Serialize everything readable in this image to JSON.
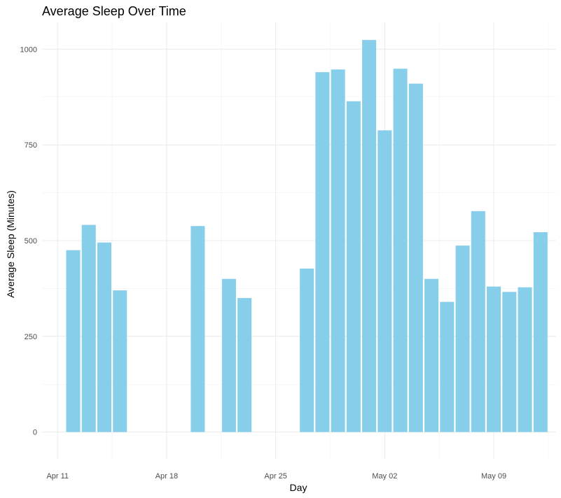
{
  "chart_data": {
    "type": "bar",
    "title": "Average Sleep Over Time",
    "xlabel": "Day",
    "ylabel": "Average Sleep (Minutes)",
    "ylim": [
      -70,
      1070
    ],
    "xlim": [
      "2016-04-10",
      "2016-05-13"
    ],
    "grid": true,
    "bar_color": "#87CEEB",
    "x_ticks": [
      {
        "date": "2016-04-11",
        "label": "Apr 11"
      },
      {
        "date": "2016-04-18",
        "label": "Apr 18"
      },
      {
        "date": "2016-04-25",
        "label": "Apr 25"
      },
      {
        "date": "2016-05-02",
        "label": "May 02"
      },
      {
        "date": "2016-05-09",
        "label": "May 09"
      }
    ],
    "y_ticks": [
      {
        "value": 0,
        "label": "0"
      },
      {
        "value": 250,
        "label": "250"
      },
      {
        "value": 500,
        "label": "500"
      },
      {
        "value": 750,
        "label": "750"
      },
      {
        "value": 1000,
        "label": "1000"
      }
    ],
    "x": [
      "2016-04-12",
      "2016-04-13",
      "2016-04-14",
      "2016-04-15",
      "2016-04-20",
      "2016-04-22",
      "2016-04-23",
      "2016-04-27",
      "2016-04-28",
      "2016-04-29",
      "2016-04-30",
      "2016-05-01",
      "2016-05-02",
      "2016-05-03",
      "2016-05-04",
      "2016-05-05",
      "2016-05-06",
      "2016-05-07",
      "2016-05-08",
      "2016-05-09",
      "2016-05-10",
      "2016-05-11",
      "2016-05-12"
    ],
    "values": [
      475,
      541,
      495,
      370,
      538,
      400,
      350,
      427,
      940,
      947,
      864,
      1024,
      788,
      949,
      910,
      400,
      340,
      487,
      577,
      380,
      366,
      378,
      522
    ]
  }
}
